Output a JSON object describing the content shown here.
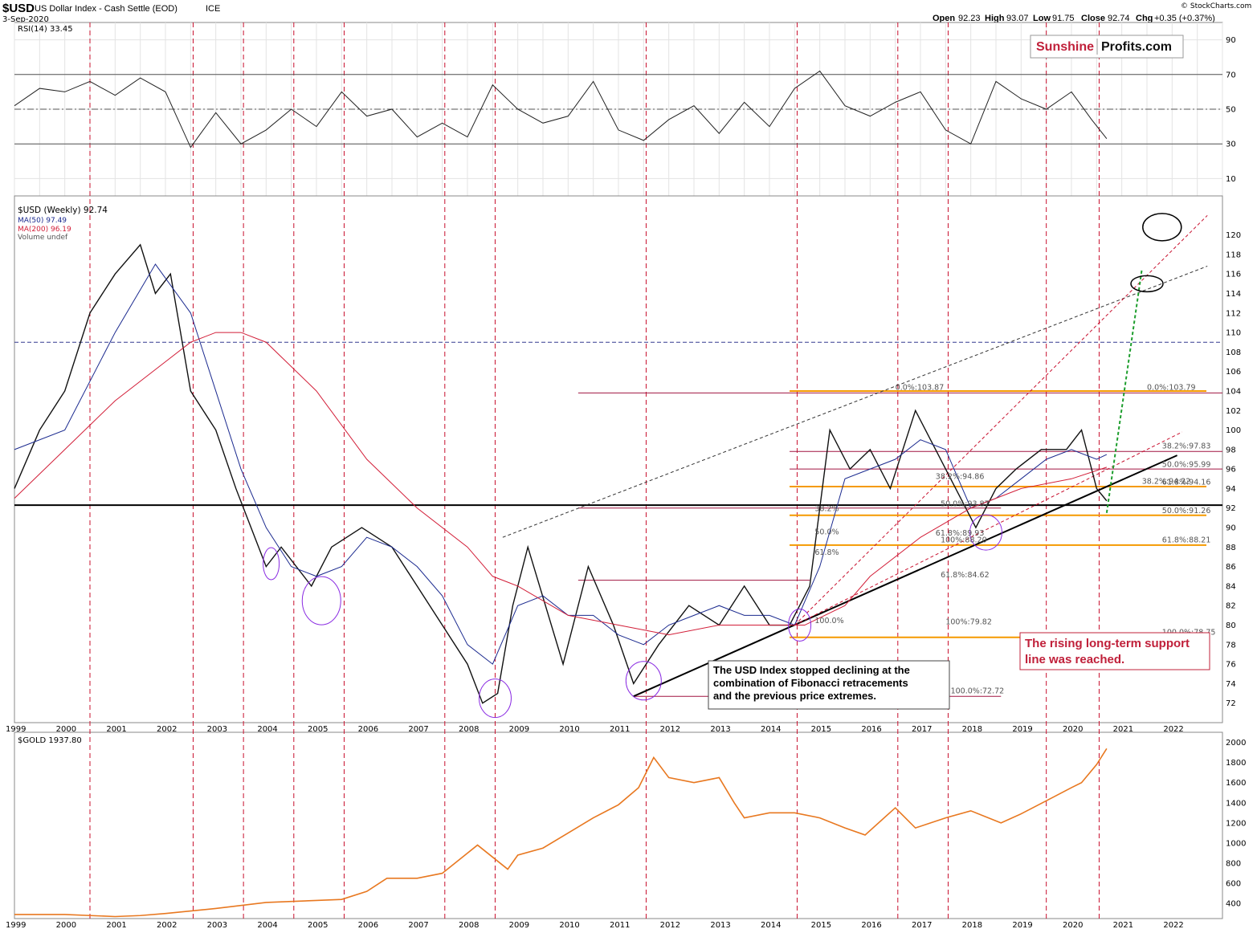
{
  "header": {
    "symbol": "$USD",
    "name": "US Dollar Index - Cash Settle (EOD)",
    "exchange": "ICE",
    "date": "3-Sep-2020",
    "open_label": "Open",
    "open": "92.23",
    "high_label": "High",
    "high": "93.07",
    "low_label": "Low",
    "low": "91.75",
    "close_label": "Close",
    "close": "92.74",
    "chg_label": "Chg",
    "chg": "+0.35 (+0.37%)",
    "source": "© StockCharts.com",
    "logo_left": "Sunshine",
    "logo_right": "Profits.com"
  },
  "colors": {
    "event_line": "#c8102e",
    "ma50": "#1b2a8f",
    "ma200": "#d21e38",
    "fib_orange": "#f59a00",
    "gold": "#e87820",
    "support": "#000000",
    "annotation_red": "#c0203a"
  },
  "chart_data": [
    {
      "type": "line",
      "panel": "rsi",
      "legend": "RSI(14) 33.45",
      "ylim": [
        0,
        100
      ],
      "yticks": [
        10,
        30,
        50,
        70,
        90
      ],
      "levels": [
        30,
        50,
        70
      ],
      "series": [
        {
          "name": "RSI(14)",
          "x": [
            1999.0,
            1999.5,
            2000.0,
            2000.5,
            2001.0,
            2001.5,
            2002.0,
            2002.5,
            2003.0,
            2003.5,
            2004.0,
            2004.5,
            2005.0,
            2005.5,
            2006.0,
            2006.5,
            2007.0,
            2007.5,
            2008.0,
            2008.5,
            2009.0,
            2009.5,
            2010.0,
            2010.5,
            2011.0,
            2011.5,
            2012.0,
            2012.5,
            2013.0,
            2013.5,
            2014.0,
            2014.5,
            2015.0,
            2015.5,
            2016.0,
            2016.5,
            2017.0,
            2017.5,
            2018.0,
            2018.5,
            2019.0,
            2019.5,
            2020.0,
            2020.4,
            2020.7
          ],
          "values": [
            52,
            62,
            60,
            66,
            58,
            68,
            60,
            28,
            48,
            30,
            38,
            50,
            40,
            60,
            46,
            50,
            34,
            42,
            34,
            64,
            50,
            42,
            46,
            66,
            38,
            32,
            44,
            52,
            36,
            54,
            40,
            62,
            72,
            52,
            46,
            54,
            60,
            38,
            30,
            66,
            56,
            50,
            60,
            44,
            33
          ]
        }
      ]
    },
    {
      "type": "line",
      "panel": "price",
      "title": "$USD (Weekly) 92.74",
      "legend": [
        "$USD (Weekly) 92.74",
        "MA(50) 97.49",
        "MA(200) 96.19",
        "Volume undef"
      ],
      "ylim": [
        70,
        124
      ],
      "yticks": [
        72,
        74,
        76,
        78,
        80,
        82,
        84,
        86,
        88,
        90,
        92,
        94,
        96,
        98,
        100,
        102,
        104,
        106,
        108,
        110,
        112,
        114,
        116,
        118,
        120
      ],
      "x_tick_labels": [
        "1999",
        "2000",
        "2001",
        "2002",
        "2003",
        "2004",
        "2005",
        "2006",
        "2007",
        "2008",
        "2009",
        "2010",
        "2011",
        "2012",
        "2013",
        "2014",
        "2015",
        "2016",
        "2017",
        "2018",
        "2019",
        "2020",
        "2021",
        "2022"
      ],
      "series": [
        {
          "name": "$USD (Weekly)",
          "x": [
            1999.0,
            1999.5,
            2000.0,
            2000.5,
            2001.0,
            2001.5,
            2001.8,
            2002.1,
            2002.5,
            2003.0,
            2003.4,
            2004.0,
            2004.3,
            2004.9,
            2005.3,
            2005.9,
            2006.5,
            2007.0,
            2007.5,
            2008.0,
            2008.3,
            2008.6,
            2008.9,
            2009.2,
            2009.9,
            2010.4,
            2010.9,
            2011.3,
            2011.8,
            2012.4,
            2013.0,
            2013.5,
            2014.0,
            2014.4,
            2014.8,
            2015.2,
            2015.6,
            2016.0,
            2016.4,
            2016.9,
            2017.3,
            2017.7,
            2018.1,
            2018.5,
            2018.9,
            2019.4,
            2019.9,
            2020.2,
            2020.5,
            2020.7
          ],
          "values": [
            94,
            100,
            104,
            112,
            116,
            119,
            114,
            116,
            104,
            100,
            94,
            86,
            88,
            84,
            88,
            90,
            88,
            84,
            80,
            76,
            72,
            73,
            82,
            88,
            76,
            86,
            80,
            74,
            78,
            82,
            80,
            84,
            80,
            80,
            84,
            100,
            96,
            98,
            94,
            102,
            98,
            94,
            90,
            94,
            96,
            98,
            98,
            100,
            94,
            92.74
          ]
        },
        {
          "name": "MA(50)",
          "x": [
            1999.0,
            2000.0,
            2001.0,
            2001.8,
            2002.5,
            2003.0,
            2003.5,
            2004.0,
            2004.5,
            2005.0,
            2005.5,
            2006.0,
            2006.5,
            2007.0,
            2007.5,
            2008.0,
            2008.5,
            2009.0,
            2009.5,
            2010.0,
            2010.5,
            2011.0,
            2011.5,
            2012.0,
            2012.5,
            2013.0,
            2013.5,
            2014.0,
            2014.5,
            2015.0,
            2015.5,
            2016.0,
            2016.5,
            2017.0,
            2017.5,
            2018.0,
            2018.5,
            2019.0,
            2019.5,
            2020.0,
            2020.5,
            2020.7
          ],
          "values": [
            98,
            100,
            110,
            117,
            112,
            104,
            96,
            90,
            86,
            85,
            86,
            89,
            88,
            86,
            83,
            78,
            76,
            82,
            83,
            81,
            81,
            79,
            78,
            80,
            81,
            82,
            81,
            81,
            80,
            86,
            95,
            96,
            97,
            99,
            98,
            92,
            93,
            95,
            97,
            98,
            97,
            97.49
          ]
        },
        {
          "name": "MA(200)",
          "x": [
            1999.0,
            2000.0,
            2001.0,
            2002.0,
            2002.5,
            2003.0,
            2003.5,
            2004.0,
            2005.0,
            2006.0,
            2007.0,
            2008.0,
            2008.5,
            2009.0,
            2010.0,
            2011.0,
            2012.0,
            2013.0,
            2014.0,
            2014.7,
            2015.5,
            2016.0,
            2017.0,
            2018.0,
            2019.0,
            2020.0,
            2020.7
          ],
          "values": [
            93,
            98,
            103,
            107,
            109,
            110,
            110,
            109,
            104,
            97,
            92,
            88,
            85,
            84,
            81,
            80,
            79,
            80,
            80,
            80,
            82,
            85,
            89,
            92,
            94,
            95,
            96.19
          ]
        }
      ],
      "fib_labels": [
        "0.0%:103.79",
        "0.0%:103.87",
        "38.2%:97.83",
        "50.0%:95.99",
        "38.2%:94.22",
        "61.8%:94.16",
        "38.2%:94.86",
        "50.0%:93.87",
        "50.0%:91.26",
        "50.0%",
        "61.8%",
        "61.8%:89.93",
        "61.8%:88.21",
        "100%:88.20",
        "61.8%:84.62",
        "100.0%",
        "100%:79.82",
        "100.0%:78.75",
        "100.0%:72.72",
        "38.2%"
      ],
      "annotations": [
        "The USD Index stopped declining at the combination of Fibonacci retracements and the previous price extremes.",
        "The rising long-term support line was reached."
      ]
    },
    {
      "type": "line",
      "panel": "gold",
      "legend": "$GOLD 1937.80",
      "ylim": [
        250,
        2100
      ],
      "yticks": [
        400,
        600,
        800,
        1000,
        1200,
        1400,
        1600,
        1800,
        2000
      ],
      "series": [
        {
          "name": "$GOLD",
          "x": [
            1999.0,
            2000.0,
            2001.0,
            2001.5,
            2002.0,
            2003.0,
            2004.0,
            2005.0,
            2005.5,
            2006.0,
            2006.4,
            2007.0,
            2007.5,
            2008.0,
            2008.2,
            2008.8,
            2009.0,
            2009.5,
            2010.0,
            2010.5,
            2011.0,
            2011.4,
            2011.7,
            2012.0,
            2012.5,
            2013.0,
            2013.3,
            2013.5,
            2014.0,
            2014.5,
            2015.0,
            2015.5,
            2015.9,
            2016.5,
            2016.9,
            2017.5,
            2018.0,
            2018.6,
            2019.0,
            2019.5,
            2020.0,
            2020.2,
            2020.5,
            2020.7
          ],
          "values": [
            290,
            290,
            270,
            280,
            300,
            350,
            410,
            430,
            440,
            520,
            650,
            650,
            700,
            900,
            980,
            740,
            880,
            950,
            1100,
            1250,
            1380,
            1550,
            1850,
            1650,
            1600,
            1650,
            1400,
            1250,
            1300,
            1300,
            1250,
            1150,
            1080,
            1350,
            1150,
            1250,
            1320,
            1200,
            1290,
            1420,
            1550,
            1600,
            1780,
            1937.8
          ]
        }
      ]
    }
  ]
}
